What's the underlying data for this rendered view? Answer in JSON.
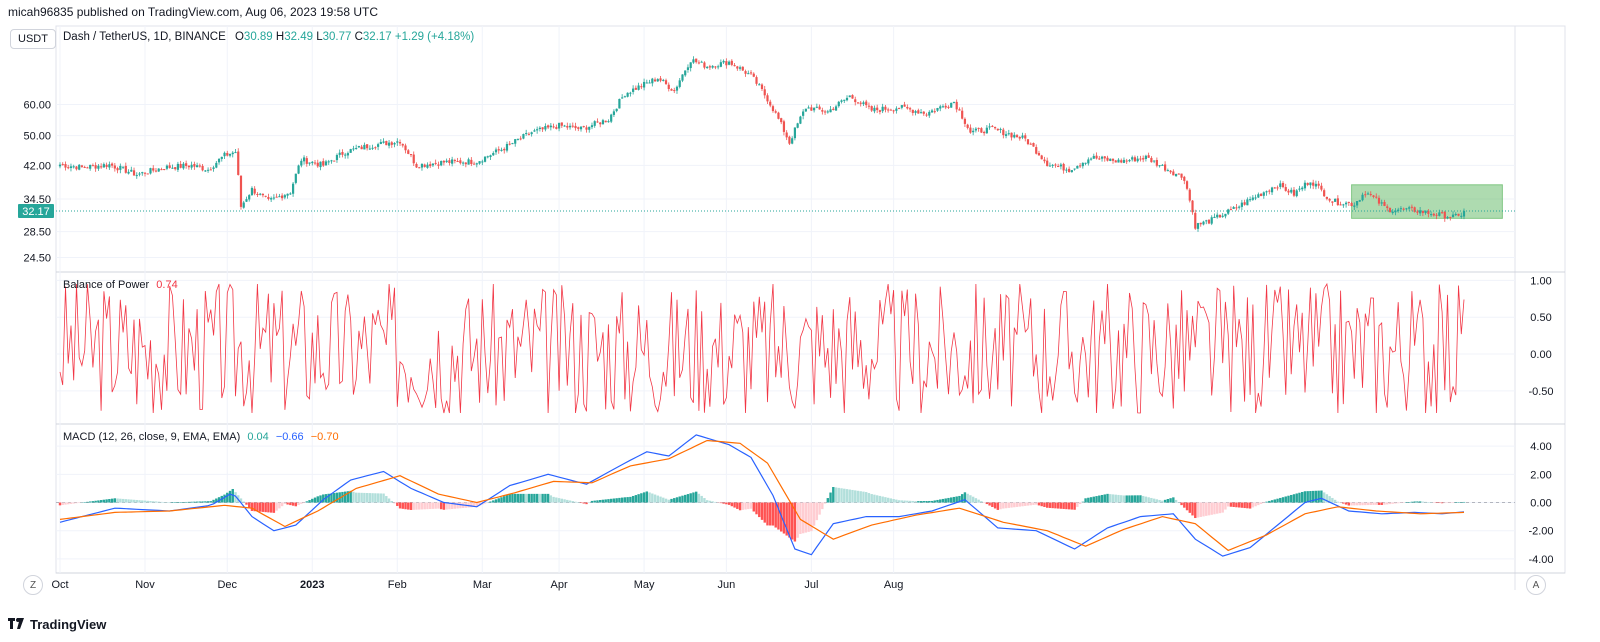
{
  "header": {
    "publisher_line": "micah96835 published on TradingView.com, Aug 06, 2023 19:58 UTC"
  },
  "symbol_button": "USDT",
  "legend": {
    "pair": "Dash / TetherUS, 1D, BINANCE",
    "o_label": "O",
    "o": "30.89",
    "h_label": "H",
    "h": "32.49",
    "l_label": "L",
    "l": "30.77",
    "c_label": "C",
    "c": "32.17",
    "change": "+1.29 (+4.18%)"
  },
  "bop": {
    "label": "Balance of Power",
    "value": "0.74"
  },
  "macd": {
    "label": "MACD (12, 26, close, 9, EMA, EMA)",
    "hist": "0.04",
    "macd": "−0.66",
    "signal": "−0.70"
  },
  "footer": {
    "brand": "TradingView"
  },
  "corner_buttons": {
    "left": "Z",
    "right": "A"
  },
  "colors": {
    "up": "#26a69a",
    "down": "#ef5350",
    "macd": "#2962ff",
    "signal": "#ff6d00",
    "bop": "#f23645",
    "box": "#4caf50"
  },
  "chart_data": [
    {
      "type": "candlestick",
      "title": "Dash / TetherUS, 1D, BINANCE",
      "x_ticks": [
        "Oct",
        "Nov",
        "Dec",
        "2023",
        "Feb",
        "Mar",
        "Apr",
        "May",
        "Jun",
        "Jul",
        "Aug"
      ],
      "y_ticks": [
        "60.00",
        "50.00",
        "42.00",
        "34.50",
        "28.50",
        "24.50"
      ],
      "last_price_label": "32.17",
      "scale": "log",
      "ylim": [
        22.5,
        95
      ],
      "close_path": [
        {
          "d": 0,
          "v": 42.2
        },
        {
          "d": 8,
          "v": 41.5
        },
        {
          "d": 18,
          "v": 42.2
        },
        {
          "d": 28,
          "v": 39.8
        },
        {
          "d": 38,
          "v": 41.5
        },
        {
          "d": 48,
          "v": 42.0
        },
        {
          "d": 54,
          "v": 41.0
        },
        {
          "d": 60,
          "v": 44.5
        },
        {
          "d": 64,
          "v": 45.5
        },
        {
          "d": 66,
          "v": 33.0
        },
        {
          "d": 70,
          "v": 36.5
        },
        {
          "d": 76,
          "v": 34.0
        },
        {
          "d": 84,
          "v": 36.0
        },
        {
          "d": 88,
          "v": 43.5
        },
        {
          "d": 96,
          "v": 42.0
        },
        {
          "d": 104,
          "v": 45.5
        },
        {
          "d": 112,
          "v": 47.0
        },
        {
          "d": 124,
          "v": 48.5
        },
        {
          "d": 130,
          "v": 42.0
        },
        {
          "d": 140,
          "v": 42.8
        },
        {
          "d": 152,
          "v": 43.0
        },
        {
          "d": 162,
          "v": 46.5
        },
        {
          "d": 172,
          "v": 51.0
        },
        {
          "d": 182,
          "v": 53.0
        },
        {
          "d": 190,
          "v": 52.0
        },
        {
          "d": 200,
          "v": 55.0
        },
        {
          "d": 206,
          "v": 64.0
        },
        {
          "d": 212,
          "v": 67.0
        },
        {
          "d": 218,
          "v": 70.0
        },
        {
          "d": 224,
          "v": 65.0
        },
        {
          "d": 230,
          "v": 78.0
        },
        {
          "d": 236,
          "v": 75.0
        },
        {
          "d": 244,
          "v": 77.0
        },
        {
          "d": 252,
          "v": 71.0
        },
        {
          "d": 258,
          "v": 62.0
        },
        {
          "d": 266,
          "v": 48.0
        },
        {
          "d": 272,
          "v": 59.0
        },
        {
          "d": 280,
          "v": 57.5
        },
        {
          "d": 288,
          "v": 63.0
        },
        {
          "d": 296,
          "v": 58.0
        },
        {
          "d": 306,
          "v": 59.0
        },
        {
          "d": 316,
          "v": 57.0
        },
        {
          "d": 326,
          "v": 61.0
        },
        {
          "d": 332,
          "v": 51.0
        },
        {
          "d": 340,
          "v": 52.0
        },
        {
          "d": 352,
          "v": 49.0
        },
        {
          "d": 360,
          "v": 42.5
        },
        {
          "d": 368,
          "v": 41.0
        },
        {
          "d": 376,
          "v": 44.0
        },
        {
          "d": 386,
          "v": 43.0
        },
        {
          "d": 396,
          "v": 44.0
        },
        {
          "d": 404,
          "v": 41.0
        },
        {
          "d": 410,
          "v": 39.0
        },
        {
          "d": 414,
          "v": 29.5
        },
        {
          "d": 420,
          "v": 30.5
        },
        {
          "d": 428,
          "v": 32.5
        },
        {
          "d": 436,
          "v": 35.0
        },
        {
          "d": 444,
          "v": 37.5
        },
        {
          "d": 450,
          "v": 35.5
        },
        {
          "d": 456,
          "v": 38.5
        },
        {
          "d": 464,
          "v": 34.0
        },
        {
          "d": 472,
          "v": 33.5
        },
        {
          "d": 476,
          "v": 36.0
        },
        {
          "d": 484,
          "v": 32.5
        },
        {
          "d": 494,
          "v": 32.3
        },
        {
          "d": 502,
          "v": 31.5
        },
        {
          "d": 510,
          "v": 31.0
        },
        {
          "d": 512,
          "v": 32.17
        }
      ],
      "highlight_box": {
        "start_day": 471,
        "end_day": 526,
        "top": 37.5,
        "bottom": 30.8
      }
    },
    {
      "type": "line",
      "title": "Balance of Power",
      "y_ticks": [
        "1.00",
        "0.50",
        "0.00",
        "-0.50"
      ],
      "ylim": [
        -0.95,
        1.1
      ],
      "last_value": 0.74,
      "note": "oscillates between about -0.8 and 0.95 daily"
    },
    {
      "type": "line+bar",
      "title": "MACD (12, 26, close, 9, EMA, EMA)",
      "y_ticks": [
        "4.00",
        "2.00",
        "0.00",
        "-2.00",
        "-4.00"
      ],
      "ylim": [
        -5,
        5.5
      ],
      "series": [
        {
          "name": "MACD",
          "points": [
            {
              "d": 0,
              "v": -1.4
            },
            {
              "d": 20,
              "v": -0.4
            },
            {
              "d": 40,
              "v": -0.6
            },
            {
              "d": 55,
              "v": -0.2
            },
            {
              "d": 63,
              "v": 0.7
            },
            {
              "d": 70,
              "v": -1.0
            },
            {
              "d": 78,
              "v": -2.0
            },
            {
              "d": 86,
              "v": -1.6
            },
            {
              "d": 96,
              "v": 0.2
            },
            {
              "d": 106,
              "v": 1.6
            },
            {
              "d": 118,
              "v": 2.2
            },
            {
              "d": 128,
              "v": 1.0
            },
            {
              "d": 140,
              "v": 0.0
            },
            {
              "d": 152,
              "v": -0.3
            },
            {
              "d": 164,
              "v": 1.2
            },
            {
              "d": 178,
              "v": 2.0
            },
            {
              "d": 192,
              "v": 1.3
            },
            {
              "d": 206,
              "v": 2.8
            },
            {
              "d": 214,
              "v": 3.6
            },
            {
              "d": 222,
              "v": 3.3
            },
            {
              "d": 232,
              "v": 4.8
            },
            {
              "d": 244,
              "v": 4.1
            },
            {
              "d": 252,
              "v": 3.2
            },
            {
              "d": 260,
              "v": 0.5
            },
            {
              "d": 268,
              "v": -3.3
            },
            {
              "d": 274,
              "v": -3.7
            },
            {
              "d": 282,
              "v": -1.5
            },
            {
              "d": 294,
              "v": -1.0
            },
            {
              "d": 306,
              "v": -1.0
            },
            {
              "d": 318,
              "v": -0.6
            },
            {
              "d": 330,
              "v": 0.2
            },
            {
              "d": 342,
              "v": -1.8
            },
            {
              "d": 356,
              "v": -2.0
            },
            {
              "d": 370,
              "v": -3.3
            },
            {
              "d": 382,
              "v": -1.8
            },
            {
              "d": 394,
              "v": -1.0
            },
            {
              "d": 406,
              "v": -0.8
            },
            {
              "d": 414,
              "v": -2.6
            },
            {
              "d": 424,
              "v": -3.8
            },
            {
              "d": 434,
              "v": -3.2
            },
            {
              "d": 444,
              "v": -1.6
            },
            {
              "d": 454,
              "v": 0.0
            },
            {
              "d": 460,
              "v": 0.3
            },
            {
              "d": 470,
              "v": -0.6
            },
            {
              "d": 482,
              "v": -0.8
            },
            {
              "d": 494,
              "v": -0.7
            },
            {
              "d": 504,
              "v": -0.8
            },
            {
              "d": 512,
              "v": -0.66
            }
          ]
        },
        {
          "name": "Signal",
          "points": [
            {
              "d": 0,
              "v": -1.2
            },
            {
              "d": 20,
              "v": -0.7
            },
            {
              "d": 40,
              "v": -0.6
            },
            {
              "d": 60,
              "v": -0.2
            },
            {
              "d": 70,
              "v": -0.4
            },
            {
              "d": 82,
              "v": -1.7
            },
            {
              "d": 94,
              "v": -0.6
            },
            {
              "d": 108,
              "v": 1.0
            },
            {
              "d": 124,
              "v": 1.9
            },
            {
              "d": 138,
              "v": 0.6
            },
            {
              "d": 152,
              "v": 0.0
            },
            {
              "d": 166,
              "v": 0.7
            },
            {
              "d": 180,
              "v": 1.5
            },
            {
              "d": 194,
              "v": 1.4
            },
            {
              "d": 208,
              "v": 2.6
            },
            {
              "d": 222,
              "v": 3.1
            },
            {
              "d": 236,
              "v": 4.4
            },
            {
              "d": 248,
              "v": 4.2
            },
            {
              "d": 258,
              "v": 2.8
            },
            {
              "d": 270,
              "v": -1.2
            },
            {
              "d": 282,
              "v": -2.6
            },
            {
              "d": 296,
              "v": -1.6
            },
            {
              "d": 312,
              "v": -0.9
            },
            {
              "d": 328,
              "v": -0.4
            },
            {
              "d": 344,
              "v": -1.4
            },
            {
              "d": 360,
              "v": -2.0
            },
            {
              "d": 374,
              "v": -3.1
            },
            {
              "d": 388,
              "v": -1.9
            },
            {
              "d": 402,
              "v": -1.0
            },
            {
              "d": 414,
              "v": -1.5
            },
            {
              "d": 426,
              "v": -3.4
            },
            {
              "d": 440,
              "v": -2.3
            },
            {
              "d": 454,
              "v": -0.8
            },
            {
              "d": 466,
              "v": -0.3
            },
            {
              "d": 480,
              "v": -0.6
            },
            {
              "d": 496,
              "v": -0.8
            },
            {
              "d": 512,
              "v": -0.7
            }
          ]
        }
      ]
    }
  ]
}
